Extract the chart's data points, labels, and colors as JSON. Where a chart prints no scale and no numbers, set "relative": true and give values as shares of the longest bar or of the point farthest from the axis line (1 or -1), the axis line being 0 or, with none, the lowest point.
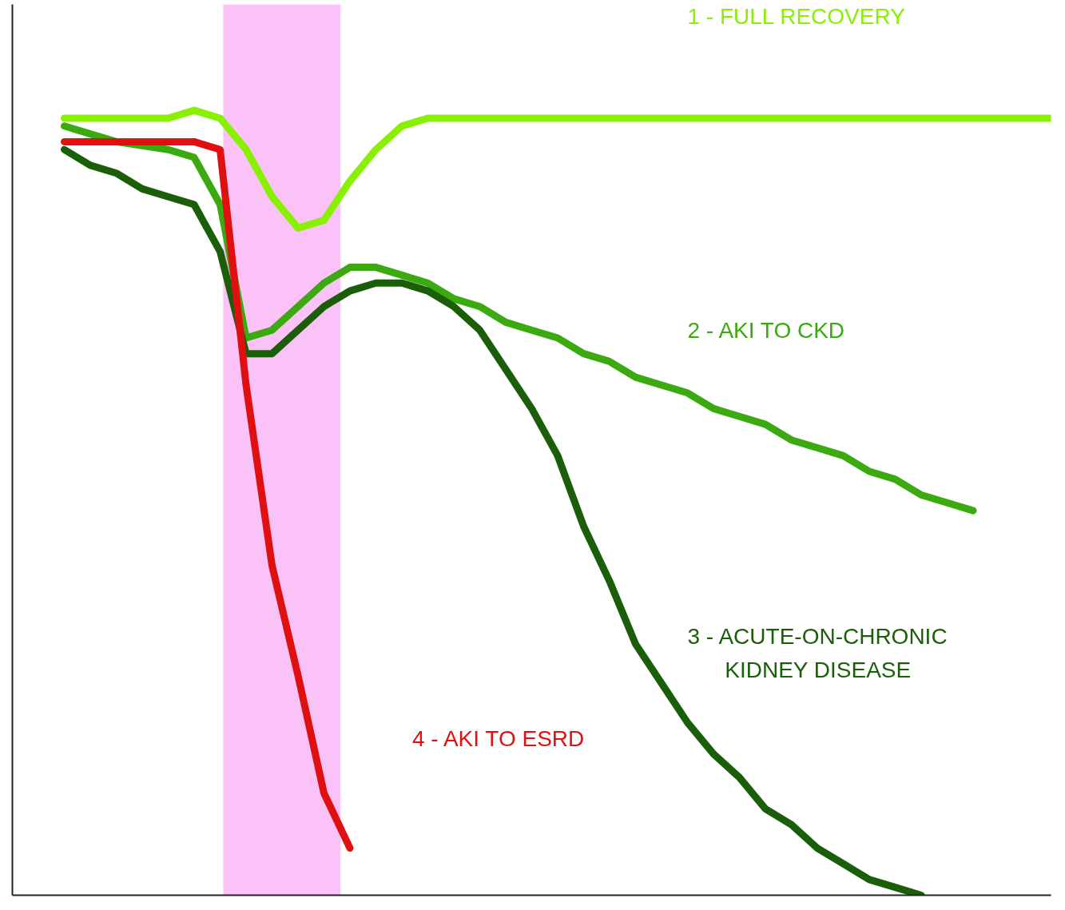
{
  "chart_data": {
    "type": "line",
    "relative": true,
    "legend": false,
    "grid": false,
    "line_style": "solid",
    "marker": "none",
    "categories": [
      null,
      null,
      null,
      null,
      null,
      null,
      null,
      null,
      null,
      null,
      null,
      null,
      null,
      null,
      null,
      null,
      null,
      null,
      null,
      null,
      null,
      null,
      null,
      null,
      null,
      null,
      null,
      null,
      null,
      null,
      null,
      null,
      null,
      null,
      null,
      null,
      null,
      null,
      null,
      null,
      null
    ],
    "series": [
      {
        "name": "1 - FULL RECOVERY",
        "color": "#88f000",
        "values": [
          null,
          null,
          0.99,
          0.99,
          0.99,
          0.99,
          0.99,
          1.0,
          0.99,
          0.95,
          0.89,
          0.85,
          0.86,
          0.91,
          0.95,
          0.98,
          0.99,
          0.99,
          0.99,
          0.99,
          0.99,
          0.99,
          0.99,
          0.99,
          0.99,
          0.99,
          0.99,
          0.99,
          0.99,
          0.99,
          0.99,
          0.99,
          0.99,
          0.99,
          0.99,
          0.99,
          0.99,
          0.99,
          0.99,
          0.99,
          0.99
        ]
      },
      {
        "name": "2 - AKI TO CKD",
        "color": "#3aaa10",
        "values": [
          null,
          null,
          0.98,
          0.97,
          0.96,
          0.955,
          0.95,
          0.94,
          0.88,
          0.71,
          0.72,
          0.75,
          0.78,
          0.8,
          0.8,
          0.79,
          0.78,
          0.76,
          0.75,
          0.73,
          0.72,
          0.71,
          0.69,
          0.68,
          0.66,
          0.65,
          0.64,
          0.62,
          0.61,
          0.6,
          0.58,
          0.57,
          0.56,
          0.54,
          0.53,
          0.51,
          0.5,
          0.49,
          null,
          null,
          null
        ]
      },
      {
        "name": "3 - ACUTE-ON-CHRONIC\nKIDNEY DISEASE",
        "color": "#1a5e0a",
        "values": [
          null,
          null,
          0.95,
          0.93,
          0.92,
          0.9,
          0.89,
          0.88,
          0.82,
          0.69,
          0.69,
          0.72,
          0.75,
          0.77,
          0.78,
          0.78,
          0.77,
          0.75,
          0.72,
          0.67,
          0.62,
          0.56,
          0.47,
          0.4,
          0.32,
          0.27,
          0.22,
          0.18,
          0.15,
          0.11,
          0.09,
          0.06,
          0.04,
          0.02,
          0.01,
          0,
          null,
          null,
          null,
          null,
          null
        ]
      },
      {
        "name": "4 - AKI TO ESRD",
        "color": "#e01010",
        "values": [
          null,
          null,
          0.96,
          0.96,
          0.96,
          0.96,
          0.96,
          0.96,
          0.95,
          0.65,
          0.42,
          0.28,
          0.13,
          0.06,
          null,
          null,
          null,
          null,
          null,
          null,
          null,
          null,
          null,
          null,
          null,
          null,
          null,
          null,
          null,
          null,
          null,
          null,
          null,
          null,
          null,
          null,
          null,
          null,
          null,
          null,
          null
        ]
      }
    ]
  }
}
